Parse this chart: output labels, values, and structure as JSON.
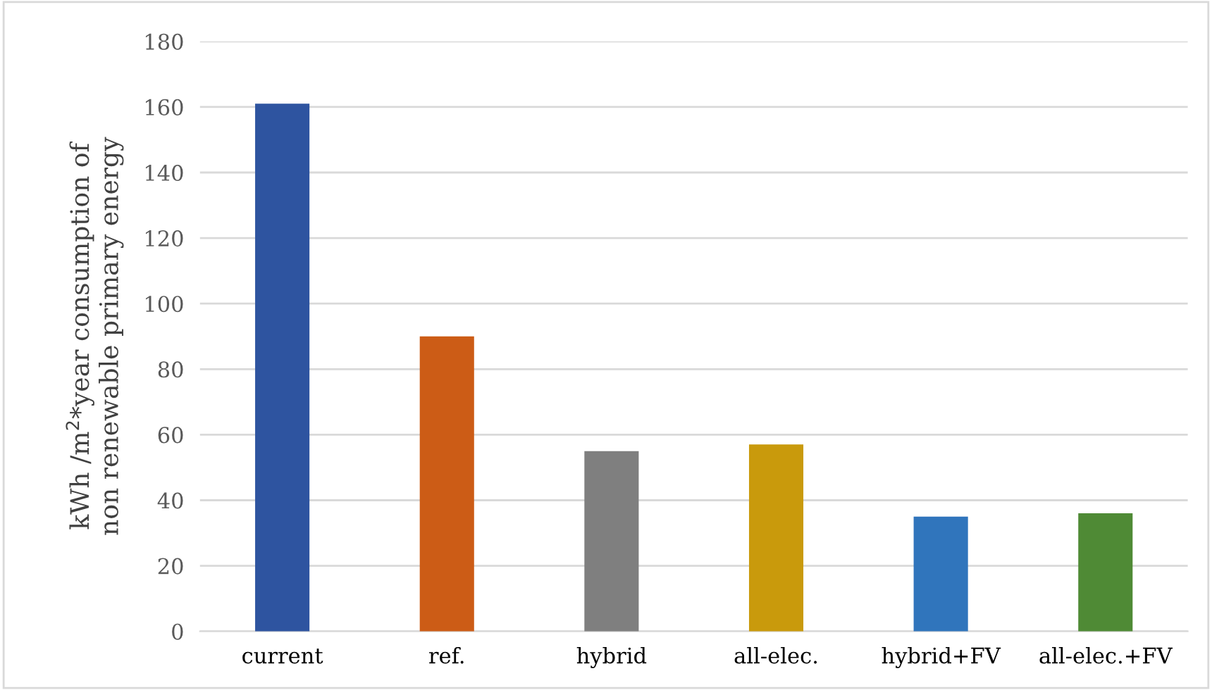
{
  "chart_data": {
    "type": "bar",
    "ylabel": "kWh /m$^{2}$*year consumption of\nnon renewable primary energy",
    "categories": [
      "current",
      "ref.",
      "hybrid",
      "all-elec.",
      "hybrid+FV",
      "all-elec.+FV"
    ],
    "values": [
      161,
      90,
      55,
      57,
      35,
      36
    ],
    "colors": [
      "#2e54a0",
      "#cc5c16",
      "#7f7f7f",
      "#c99a0c",
      "#3075bc",
      "#4f8a35"
    ],
    "ylim": [
      0,
      180
    ],
    "yticks": [
      0,
      20,
      40,
      60,
      80,
      100,
      120,
      140,
      160,
      180
    ],
    "grid": "y",
    "legend": false
  }
}
